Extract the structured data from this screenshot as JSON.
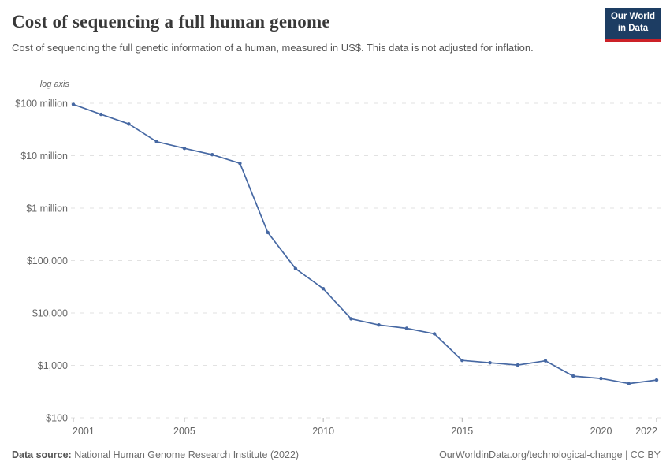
{
  "header": {
    "title": "Cost of sequencing a full human genome",
    "subtitle": "Cost of sequencing the full genetic information of a human, measured in US$. This data is not adjusted for inflation.",
    "logo": {
      "line1": "Our World",
      "line2": "in Data",
      "bg_color": "#1d3d63",
      "accent_color": "#cc2128"
    }
  },
  "chart_data": {
    "type": "line",
    "title": "Cost of sequencing a full human genome",
    "xlabel": "",
    "ylabel": "",
    "yscale": "log",
    "y_axis_note": "log axis",
    "grid": "horizontal-dashed",
    "legend": "none",
    "line_color": "#4668a3",
    "xlim": [
      2001,
      2022
    ],
    "ylim": [
      100,
      100000000
    ],
    "x": [
      2001,
      2002,
      2003,
      2004,
      2005,
      2006,
      2007,
      2008,
      2009,
      2010,
      2011,
      2012,
      2013,
      2014,
      2015,
      2016,
      2017,
      2018,
      2019,
      2020,
      2021,
      2022
    ],
    "series": [
      {
        "name": "Cost of sequencing a full human genome (US$)",
        "values": [
          95263072,
          61448422,
          40157554,
          18519312,
          13801124,
          10474556,
          7147571,
          342502,
          70333,
          29092,
          7743,
          5901,
          5096,
          4008,
          1245,
          1121,
          1015,
          1222,
          624,
          562,
          450,
          525
        ]
      }
    ],
    "y_ticks": [
      {
        "value": 100000000,
        "label": "$100 million"
      },
      {
        "value": 10000000,
        "label": "$10 million"
      },
      {
        "value": 1000000,
        "label": "$1 million"
      },
      {
        "value": 100000,
        "label": "$100,000"
      },
      {
        "value": 10000,
        "label": "$10,000"
      },
      {
        "value": 1000,
        "label": "$1,000"
      },
      {
        "value": 100,
        "label": "$100"
      }
    ],
    "x_ticks": [
      {
        "value": 2001,
        "label": "2001"
      },
      {
        "value": 2005,
        "label": "2005"
      },
      {
        "value": 2010,
        "label": "2010"
      },
      {
        "value": 2015,
        "label": "2015"
      },
      {
        "value": 2020,
        "label": "2020"
      },
      {
        "value": 2022,
        "label": "2022"
      }
    ]
  },
  "footer": {
    "source_label": "Data source:",
    "source_text": " National Human Genome Research Institute (2022)",
    "attribution": "OurWorldinData.org/technological-change | CC BY"
  }
}
